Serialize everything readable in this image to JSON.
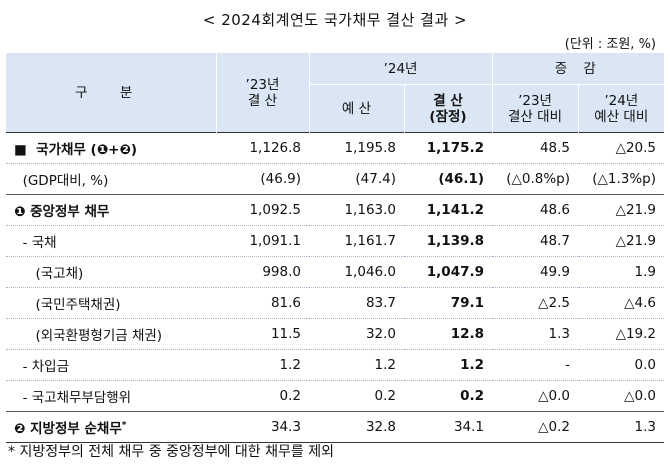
{
  "title": "< 2024회계연도 국가채무 결산 결과 >",
  "unit": "(단위 : 조원, %)",
  "header": {
    "gubun": "구 분",
    "y23_top": "’23년",
    "y23_bottom": "결 산",
    "y24": "’24년",
    "y24_budget": "예 산",
    "y24_settle_top": "결 산",
    "y24_settle_bottom": "(잠정)",
    "change": "증 감",
    "chg1_top": "’23년",
    "chg1_bottom": "결산 대비",
    "chg2_top": "’24년",
    "chg2_bottom": "예산 대비"
  },
  "rows": [
    {
      "label": "■  국가채무 (❶+❷)",
      "v23": "1,126.8",
      "budget": "1,195.8",
      "settle": "1,175.2",
      "chg23": "48.5",
      "chg24": "△20.5"
    },
    {
      "label": "  (GDP대비, %)",
      "v23": "(46.9)",
      "budget": "(47.4)",
      "settle": "(46.1)",
      "chg23": "(△0.8%p)",
      "chg24": "(△1.3%p)"
    },
    {
      "label": "❶ 중앙정부 채무",
      "v23": "1,092.5",
      "budget": "1,163.0",
      "settle": "1,141.2",
      "chg23": "48.6",
      "chg24": "△21.9"
    },
    {
      "label": "  - 국채",
      "v23": "1,091.1",
      "budget": "1,161.7",
      "settle": "1,139.8",
      "chg23": "48.7",
      "chg24": "△21.9"
    },
    {
      "label": "     (국고채)",
      "v23": "998.0",
      "budget": "1,046.0",
      "settle": "1,047.9",
      "chg23": "49.9",
      "chg24": "1.9"
    },
    {
      "label": "     (국민주택채권)",
      "v23": "81.6",
      "budget": "83.7",
      "settle": "79.1",
      "chg23": "△2.5",
      "chg24": "△4.6"
    },
    {
      "label": "     (외국환평형기금 채권)",
      "v23": "11.5",
      "budget": "32.0",
      "settle": "12.8",
      "chg23": "1.3",
      "chg24": "△19.2"
    },
    {
      "label": "  - 차입금",
      "v23": "1.2",
      "budget": "1.2",
      "settle": "1.2",
      "chg23": "-",
      "chg24": "0.0"
    },
    {
      "label": "  - 국고채무부담행위",
      "v23": "0.2",
      "budget": "0.2",
      "settle": "0.2",
      "chg23": "△0.0",
      "chg24": "△0.0"
    },
    {
      "label": "❷ 지방정부 순채무",
      "label_sup": "*",
      "v23": "34.3",
      "budget": "32.8",
      "settle": "34.1",
      "chg23": "△0.2",
      "chg24": "1.3"
    }
  ],
  "note": "* 지방정부의 전체 채무 중 중앙정부에 대한 채무를 제외"
}
